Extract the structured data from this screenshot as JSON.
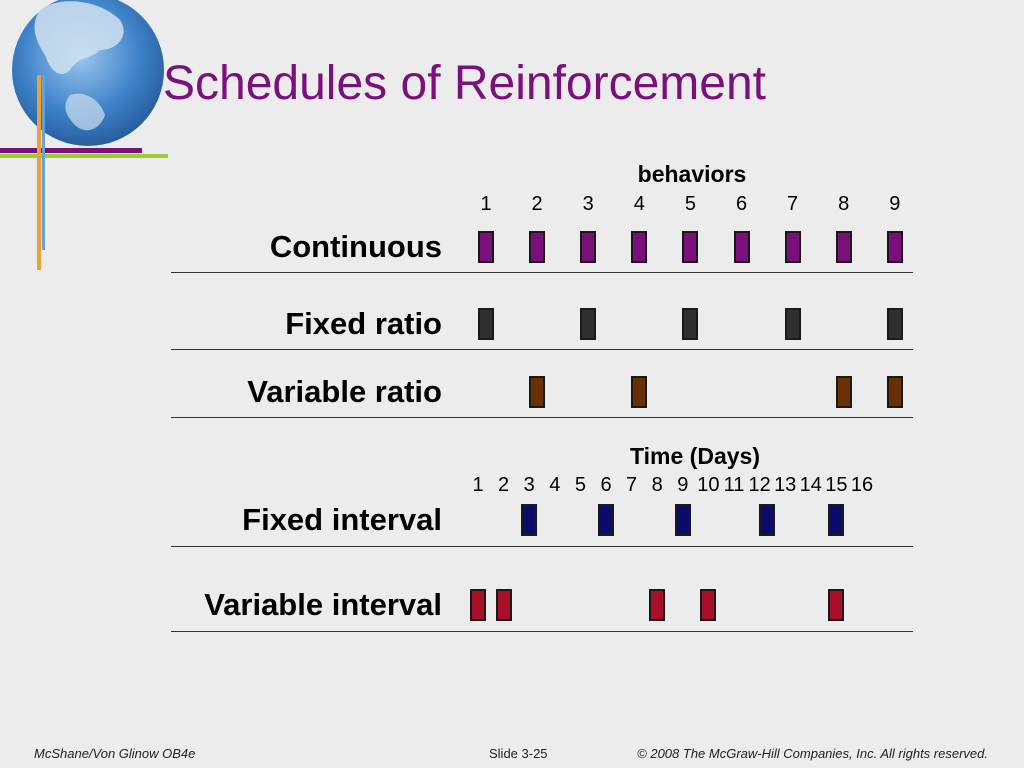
{
  "title": "Schedules of Reinforcement",
  "behaviors_axis": {
    "title": "behaviors",
    "ticks": [
      "1",
      "2",
      "3",
      "4",
      "5",
      "6",
      "7",
      "8",
      "9"
    ]
  },
  "time_axis": {
    "title": "Time (Days)",
    "ticks": [
      "1",
      "2",
      "3",
      "4",
      "5",
      "6",
      "7",
      "8",
      "9",
      "10",
      "11",
      "12",
      "13",
      "14",
      "15",
      "16"
    ]
  },
  "schedules": [
    {
      "label": "Continuous",
      "axis": "behaviors",
      "color": "#7b0f7b",
      "marks": [
        1,
        2,
        3,
        4,
        5,
        6,
        7,
        8,
        9
      ]
    },
    {
      "label": "Fixed ratio",
      "axis": "behaviors",
      "color": "#2f2f2f",
      "marks": [
        1,
        3,
        5,
        7,
        9
      ]
    },
    {
      "label": "Variable ratio",
      "axis": "behaviors",
      "color": "#6b3000",
      "marks": [
        2,
        4,
        8,
        9
      ]
    },
    {
      "label": "Fixed interval",
      "axis": "time",
      "color": "#0b0b6b",
      "marks": [
        3,
        6,
        9,
        12.3,
        15
      ]
    },
    {
      "label": "Variable interval",
      "axis": "time",
      "color": "#a8102a",
      "marks": [
        1,
        2,
        8,
        10,
        15
      ]
    }
  ],
  "footer": {
    "left": "McShane/Von Glinow  OB4e",
    "center": "Slide 3-25",
    "right": "© 2008 The McGraw-Hill Companies, Inc. All rights reserved."
  },
  "colors": {
    "background": "#ececec",
    "title": "#7b0f7b",
    "globe": "#2d6fb8",
    "accent_orange": "#f0a030",
    "accent_green": "#9acd32"
  }
}
